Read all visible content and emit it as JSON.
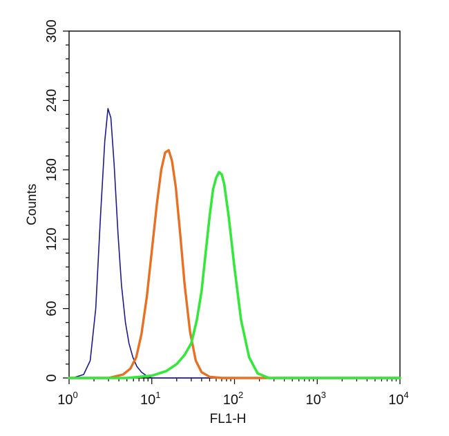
{
  "chart_data": {
    "type": "line",
    "title": "",
    "xlabel": "FL1-H",
    "ylabel": "Counts",
    "x_scale": "log",
    "xlim": [
      1,
      10000
    ],
    "ylim": [
      0,
      300
    ],
    "x_ticks": [
      {
        "value": 1,
        "base": "10",
        "exp": "0"
      },
      {
        "value": 10,
        "base": "10",
        "exp": "1"
      },
      {
        "value": 100,
        "base": "10",
        "exp": "2"
      },
      {
        "value": 1000,
        "base": "10",
        "exp": "3"
      },
      {
        "value": 10000,
        "base": "10",
        "exp": "4"
      }
    ],
    "y_ticks": [
      "0",
      "60",
      "120",
      "180",
      "240",
      "300"
    ],
    "grid": false,
    "legend": "none",
    "series": [
      {
        "color": "#1a1a8c",
        "x": [
          1.1,
          1.5,
          1.8,
          2.1,
          2.4,
          2.7,
          2.95,
          3.2,
          3.5,
          3.9,
          4.3,
          4.8,
          5.3,
          5.9,
          6.6,
          7.5,
          8.6,
          10,
          15,
          30,
          10000
        ],
        "y": [
          0,
          3,
          15,
          60,
          140,
          205,
          233,
          225,
          185,
          125,
          80,
          48,
          30,
          18,
          10,
          5,
          2,
          0,
          0,
          0,
          0
        ]
      },
      {
        "color": "#e87022",
        "x": [
          1,
          3,
          4.5,
          5.5,
          6.5,
          7.5,
          8.7,
          10,
          11.5,
          13,
          14.5,
          16,
          17.5,
          19.5,
          22,
          25,
          29,
          34,
          40,
          50,
          70,
          100,
          10000
        ],
        "y": [
          0,
          0,
          3,
          8,
          18,
          38,
          70,
          110,
          150,
          180,
          195,
          197,
          188,
          165,
          125,
          80,
          40,
          15,
          5,
          1,
          0,
          0,
          0
        ]
      },
      {
        "color": "#33e83a",
        "x": [
          1,
          5,
          10,
          15,
          20,
          25,
          30,
          35,
          40,
          45,
          50,
          55,
          60,
          65,
          70,
          75,
          85,
          100,
          120,
          150,
          190,
          260,
          400,
          10000
        ],
        "y": [
          0,
          0,
          2,
          6,
          12,
          20,
          30,
          50,
          75,
          110,
          140,
          163,
          173,
          178,
          176,
          168,
          140,
          95,
          50,
          18,
          4,
          0,
          0,
          0
        ]
      }
    ]
  }
}
